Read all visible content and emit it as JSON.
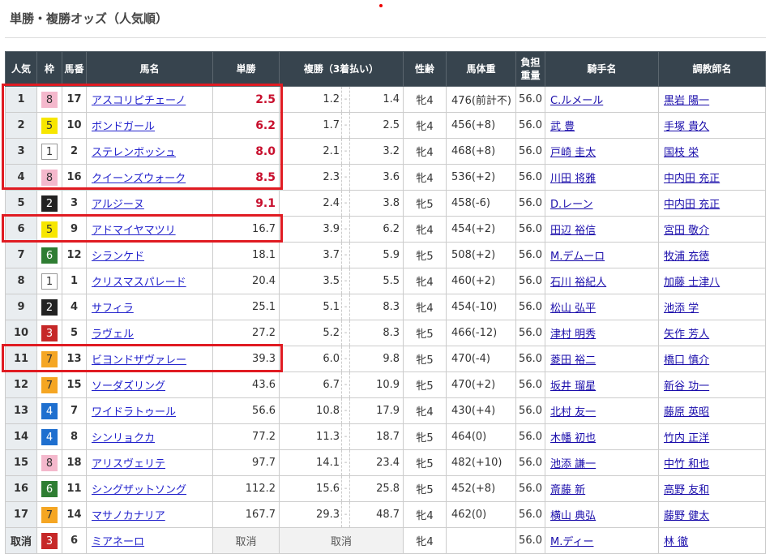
{
  "title": "単勝・複勝オッズ（人気順）",
  "headers": [
    "人気",
    "枠",
    "馬番",
    "馬名",
    "単勝",
    "複勝（3着払い）",
    "性齢",
    "馬体重",
    "負担重量",
    "騎手名",
    "調教師名"
  ],
  "frame_colors": {
    "1": [
      "#ffffff",
      "#333333",
      "#999999"
    ],
    "2": [
      "#222222",
      "#ffffff",
      "#222222"
    ],
    "3": [
      "#c62828",
      "#ffffff",
      "#c62828"
    ],
    "4": [
      "#1e6fcf",
      "#ffffff",
      "#1e6fcf"
    ],
    "5": [
      "#f7e600",
      "#333333",
      "#f7e600"
    ],
    "6": [
      "#2e7d32",
      "#ffffff",
      "#2e7d32"
    ],
    "7": [
      "#f5a623",
      "#333333",
      "#f5a623"
    ],
    "8": [
      "#f4b8cc",
      "#333333",
      "#f4b8cc"
    ]
  },
  "highlight_color": "#e01b22",
  "rows": [
    {
      "pop": "1",
      "waku": "8",
      "num": "17",
      "name": "アスコリピチェーノ",
      "win": "2.5",
      "hot": true,
      "plo": "1.2",
      "phi": "1.4",
      "sex": "牝4",
      "weight": "476(前計不)",
      "load": "56.0",
      "jockey": "C.ルメール",
      "trainer": "黒岩 陽一"
    },
    {
      "pop": "2",
      "waku": "5",
      "num": "10",
      "name": "ボンドガール",
      "win": "6.2",
      "hot": true,
      "plo": "1.7",
      "phi": "2.5",
      "sex": "牝4",
      "weight": "456(+8)",
      "load": "56.0",
      "jockey": "武 豊",
      "trainer": "手塚 貴久"
    },
    {
      "pop": "3",
      "waku": "1",
      "num": "2",
      "name": "ステレンボッシュ",
      "win": "8.0",
      "hot": true,
      "plo": "2.1",
      "phi": "3.2",
      "sex": "牝4",
      "weight": "468(+8)",
      "load": "56.0",
      "jockey": "戸崎 圭太",
      "trainer": "国枝 栄"
    },
    {
      "pop": "4",
      "waku": "8",
      "num": "16",
      "name": "クイーンズウォーク",
      "win": "8.5",
      "hot": true,
      "plo": "2.3",
      "phi": "3.6",
      "sex": "牝4",
      "weight": "536(+2)",
      "load": "56.0",
      "jockey": "川田 将雅",
      "trainer": "中内田 充正"
    },
    {
      "pop": "5",
      "waku": "2",
      "num": "3",
      "name": "アルジーヌ",
      "win": "9.1",
      "hot": true,
      "plo": "2.4",
      "phi": "3.8",
      "sex": "牝5",
      "weight": "458(-6)",
      "load": "56.0",
      "jockey": "D.レーン",
      "trainer": "中内田 充正"
    },
    {
      "pop": "6",
      "waku": "5",
      "num": "9",
      "name": "アドマイヤマツリ",
      "win": "16.7",
      "hot": false,
      "plo": "3.9",
      "phi": "6.2",
      "sex": "牝4",
      "weight": "454(+2)",
      "load": "56.0",
      "jockey": "田辺 裕信",
      "trainer": "宮田 敬介"
    },
    {
      "pop": "7",
      "waku": "6",
      "num": "12",
      "name": "シランケド",
      "win": "18.1",
      "hot": false,
      "plo": "3.7",
      "phi": "5.9",
      "sex": "牝5",
      "weight": "508(+2)",
      "load": "56.0",
      "jockey": "M.デムーロ",
      "trainer": "牧浦 充徳"
    },
    {
      "pop": "8",
      "waku": "1",
      "num": "1",
      "name": "クリスマスパレード",
      "win": "20.4",
      "hot": false,
      "plo": "3.5",
      "phi": "5.5",
      "sex": "牝4",
      "weight": "460(+2)",
      "load": "56.0",
      "jockey": "石川 裕紀人",
      "trainer": "加藤 士津八"
    },
    {
      "pop": "9",
      "waku": "2",
      "num": "4",
      "name": "サフィラ",
      "win": "25.1",
      "hot": false,
      "plo": "5.1",
      "phi": "8.3",
      "sex": "牝4",
      "weight": "454(-10)",
      "load": "56.0",
      "jockey": "松山 弘平",
      "trainer": "池添 学"
    },
    {
      "pop": "10",
      "waku": "3",
      "num": "5",
      "name": "ラヴェル",
      "win": "27.2",
      "hot": false,
      "plo": "5.2",
      "phi": "8.3",
      "sex": "牝5",
      "weight": "466(-12)",
      "load": "56.0",
      "jockey": "津村 明秀",
      "trainer": "矢作 芳人"
    },
    {
      "pop": "11",
      "waku": "7",
      "num": "13",
      "name": "ビヨンドザヴァレー",
      "win": "39.3",
      "hot": false,
      "plo": "6.0",
      "phi": "9.8",
      "sex": "牝5",
      "weight": "470(-4)",
      "load": "56.0",
      "jockey": "菱田 裕二",
      "trainer": "橋口 慎介"
    },
    {
      "pop": "12",
      "waku": "7",
      "num": "15",
      "name": "ソーダズリング",
      "win": "43.6",
      "hot": false,
      "plo": "6.7",
      "phi": "10.9",
      "sex": "牝5",
      "weight": "470(+2)",
      "load": "56.0",
      "jockey": "坂井 瑠星",
      "trainer": "新谷 功一"
    },
    {
      "pop": "13",
      "waku": "4",
      "num": "7",
      "name": "ワイドラトゥール",
      "win": "56.6",
      "hot": false,
      "plo": "10.8",
      "phi": "17.9",
      "sex": "牝4",
      "weight": "430(+4)",
      "load": "56.0",
      "jockey": "北村 友一",
      "trainer": "藤原 英昭"
    },
    {
      "pop": "14",
      "waku": "4",
      "num": "8",
      "name": "シンリョクカ",
      "win": "77.2",
      "hot": false,
      "plo": "11.3",
      "phi": "18.7",
      "sex": "牝5",
      "weight": "464(0)",
      "load": "56.0",
      "jockey": "木幡 初也",
      "trainer": "竹内 正洋"
    },
    {
      "pop": "15",
      "waku": "8",
      "num": "18",
      "name": "アリスヴェリテ",
      "win": "97.7",
      "hot": false,
      "plo": "14.1",
      "phi": "23.4",
      "sex": "牝5",
      "weight": "482(+10)",
      "load": "56.0",
      "jockey": "池添 謙一",
      "trainer": "中竹 和也"
    },
    {
      "pop": "16",
      "waku": "6",
      "num": "11",
      "name": "シングザットソング",
      "win": "112.2",
      "hot": false,
      "plo": "15.6",
      "phi": "25.8",
      "sex": "牝5",
      "weight": "452(+8)",
      "load": "56.0",
      "jockey": "斎藤 新",
      "trainer": "高野 友和"
    },
    {
      "pop": "17",
      "waku": "7",
      "num": "14",
      "name": "マサノカナリア",
      "win": "167.7",
      "hot": false,
      "plo": "29.3",
      "phi": "48.7",
      "sex": "牝4",
      "weight": "462(0)",
      "load": "56.0",
      "jockey": "横山 典弘",
      "trainer": "藤野 健太"
    },
    {
      "pop": "取消",
      "waku": "3",
      "num": "6",
      "name": "ミアネーロ",
      "win": "取消",
      "scratched": true,
      "place": "取消",
      "sex": "牝4",
      "weight": "",
      "load": "56.0",
      "jockey": "M.ディー",
      "trainer": "林 徹"
    }
  ]
}
